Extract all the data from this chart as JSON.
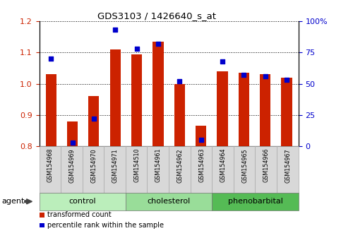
{
  "title": "GDS3103 / 1426640_s_at",
  "samples": [
    "GSM154968",
    "GSM154969",
    "GSM154970",
    "GSM154971",
    "GSM154510",
    "GSM154961",
    "GSM154962",
    "GSM154963",
    "GSM154964",
    "GSM154965",
    "GSM154966",
    "GSM154967"
  ],
  "red_values": [
    1.03,
    0.88,
    0.96,
    1.11,
    1.095,
    1.135,
    1.0,
    0.865,
    1.04,
    1.035,
    1.03,
    1.02
  ],
  "blue_values": [
    70,
    3,
    22,
    93,
    78,
    82,
    52,
    5,
    68,
    57,
    56,
    53
  ],
  "groups": [
    {
      "label": "control",
      "start": 0,
      "end": 3,
      "color": "#bbeebb"
    },
    {
      "label": "cholesterol",
      "start": 4,
      "end": 7,
      "color": "#99dd99"
    },
    {
      "label": "phenobarbital",
      "start": 8,
      "end": 11,
      "color": "#55bb55"
    }
  ],
  "ylim_left": [
    0.8,
    1.2
  ],
  "ylim_right": [
    0,
    100
  ],
  "left_ticks": [
    0.8,
    0.9,
    1.0,
    1.1,
    1.2
  ],
  "right_ticks": [
    0,
    25,
    50,
    75,
    100
  ],
  "right_tick_labels": [
    "0",
    "25",
    "50",
    "75",
    "100%"
  ],
  "bar_color": "#cc2200",
  "dot_color": "#0000cc",
  "bar_width": 0.5,
  "legend_red": "transformed count",
  "legend_blue": "percentile rank within the sample",
  "agent_label": "agent"
}
